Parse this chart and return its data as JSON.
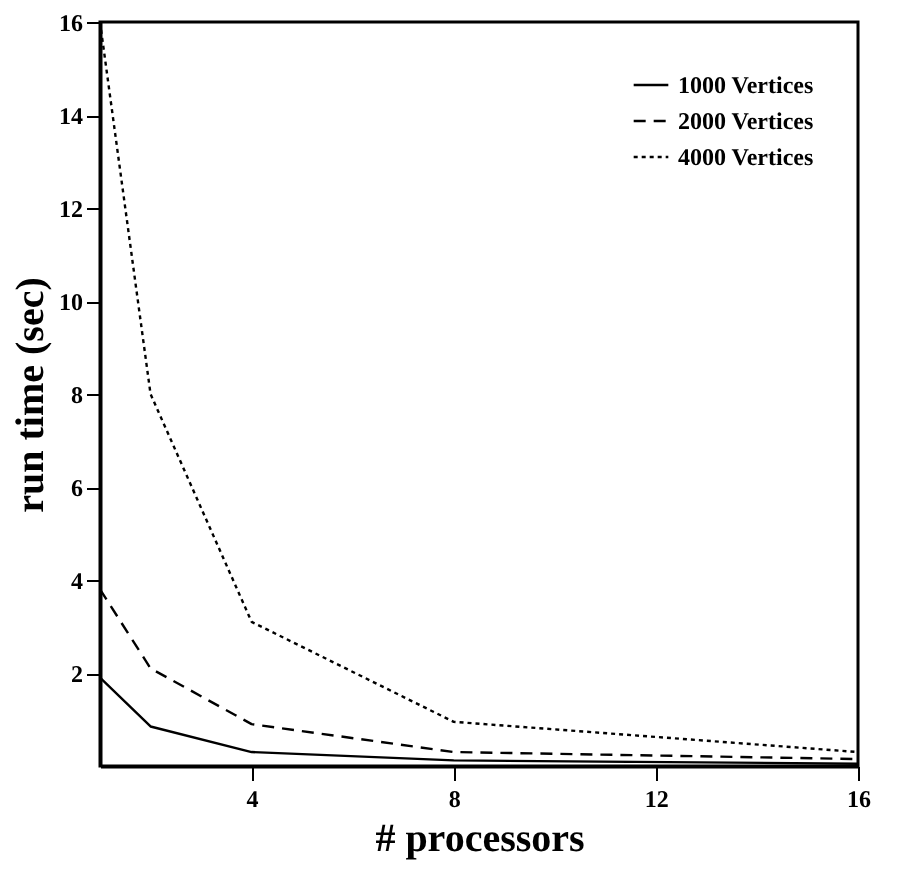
{
  "chart_data": {
    "type": "line",
    "xlabel": "# processors",
    "ylabel": "run time (sec)",
    "x": [
      1,
      2,
      4,
      8,
      16
    ],
    "series": [
      {
        "name": "1000 Vertices",
        "color": "#000000",
        "line_style": "solid",
        "values": [
          1.9,
          0.85,
          0.3,
          0.12,
          0.05
        ]
      },
      {
        "name": "2000 Vertices",
        "color": "#000000",
        "line_style": "dashed",
        "values": [
          3.8,
          2.1,
          0.9,
          0.3,
          0.15
        ]
      },
      {
        "name": "4000 Vertices",
        "color": "#000000",
        "line_style": "dotted",
        "values": [
          16,
          8,
          3.1,
          0.95,
          0.3
        ]
      }
    ],
    "xlim": [
      1,
      16
    ],
    "xticks": [
      4,
      8,
      12,
      16
    ],
    "ylim": [
      0,
      16
    ],
    "yticks": [
      2,
      4,
      6,
      8,
      10,
      12,
      14,
      16
    ],
    "grid": false,
    "legend": "top right",
    "marker": "none"
  }
}
